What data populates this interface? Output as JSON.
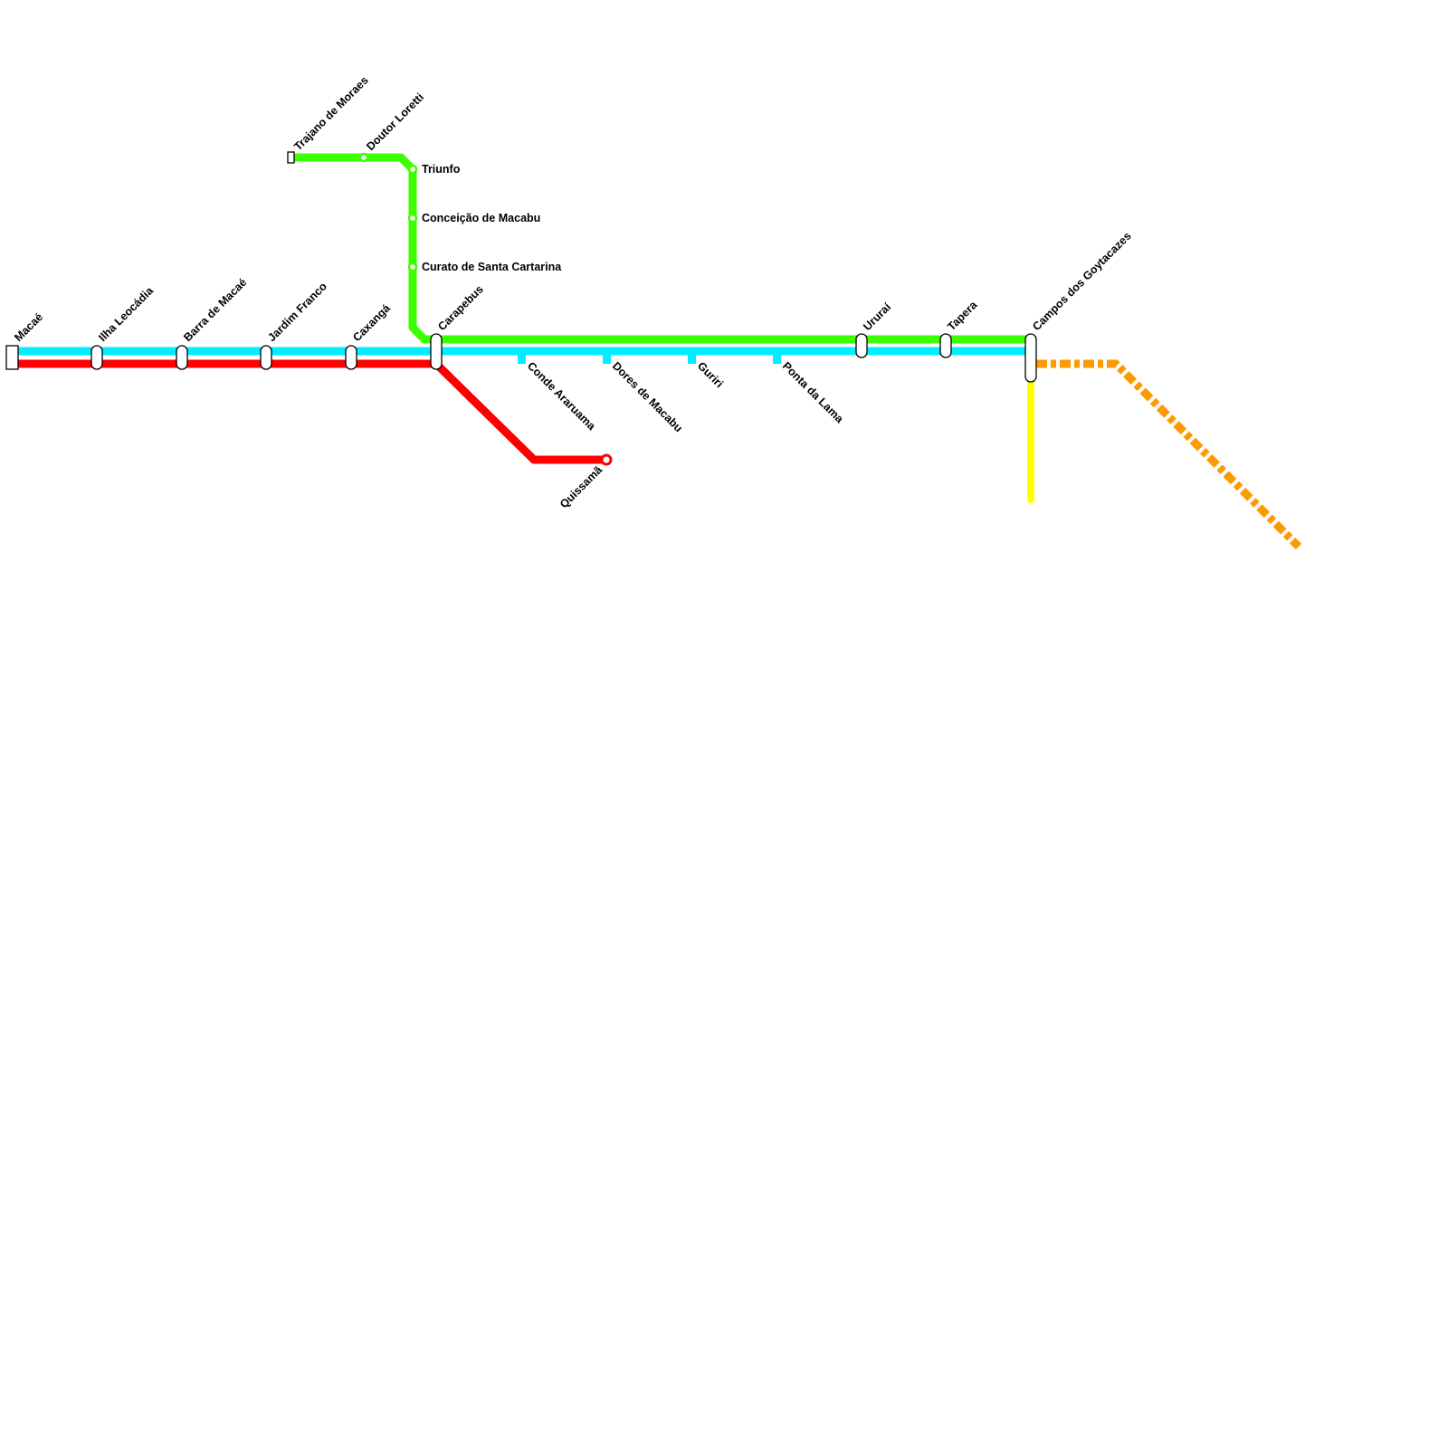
{
  "lines": {
    "cyan": {
      "color": "#00eeff"
    },
    "red": {
      "color": "#ff0000"
    },
    "green": {
      "color": "#3cff00"
    },
    "yellow": {
      "color": "#ffff00"
    },
    "orange": {
      "color": "#ff9900",
      "style": "dashed"
    }
  },
  "stations": {
    "macae": "Macaé",
    "ilha_leocadia": "Ilha Leocádia",
    "barra_de_macae": "Barra de Macaé",
    "jardim_franco": "Jardim Franco",
    "caxanga": "Caxangá",
    "carapebus": "Carapebus",
    "conde_araruama": "Conde Araruama",
    "dores_de_macabu": "Dores de Macabu",
    "guriri": "Guriri",
    "ponta_da_lama": "Ponta da Lama",
    "urura": "Ururaí",
    "tapera": "Tapera",
    "campos": "Campos dos Goytacazes",
    "quissama": "Quissamã",
    "trajano": "Trajano de Moraes",
    "doutor_loretti": "Doutor Loretti",
    "triunfo": "Triunfo",
    "conceicao": "Conceição de Macabu",
    "curato": "Curato de Santa Cartarina"
  }
}
